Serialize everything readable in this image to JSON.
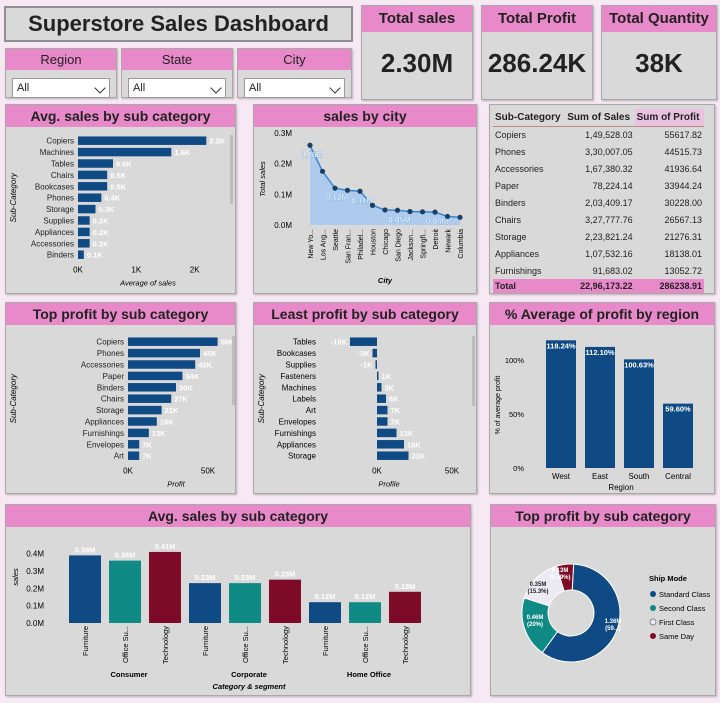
{
  "dashboard": {
    "title": "Superstore Sales Dashboard"
  },
  "kpis": [
    {
      "label": "Total sales",
      "value": "2.30M"
    },
    {
      "label": "Total Profit",
      "value": "286.24K"
    },
    {
      "label": "Total Quantity",
      "value": "38K"
    }
  ],
  "slicers": [
    {
      "label": "Region",
      "value": "All"
    },
    {
      "label": "State",
      "value": "All"
    },
    {
      "label": "City",
      "value": "All"
    }
  ],
  "colors": {
    "navy": "#0f4a84",
    "teal": "#0f8a84",
    "maroon": "#7d0a26",
    "pink": "#e889c9",
    "area": "#a9c9f0"
  },
  "panels": {
    "avg_sales_sub": "Avg. sales by sub category",
    "sales_city": "sales by city",
    "top_profit_sub": "Top profit by sub category",
    "least_profit_sub": "Least profit by sub category",
    "avg_profit_region": "% Average of profit by region",
    "avg_sales_segment": "Avg. sales by sub category",
    "top_profit_ship": "Top profit by sub category"
  },
  "table": {
    "headers": [
      "Sub-Category",
      "Sum of Sales",
      "Sum of Profit"
    ],
    "rows": [
      [
        "Copiers",
        "1,49,528.03",
        "55617.82"
      ],
      [
        "Phones",
        "3,30,007.05",
        "44515.73"
      ],
      [
        "Accessories",
        "1,67,380.32",
        "41936.64"
      ],
      [
        "Paper",
        "78,224.14",
        "33944.24"
      ],
      [
        "Binders",
        "2,03,409.17",
        "30228.00"
      ],
      [
        "Chairs",
        "3,27,777.76",
        "26567.13"
      ],
      [
        "Storage",
        "2,23,821.24",
        "21276.31"
      ],
      [
        "Appliances",
        "1,07,532.16",
        "18138.01"
      ],
      [
        "Furnishings",
        "91,683.02",
        "13052.72"
      ]
    ],
    "total": [
      "Total",
      "22,96,173.22",
      "286238.91"
    ]
  },
  "chart_data": [
    {
      "type": "bar",
      "orientation": "horizontal",
      "title": "Avg. sales by sub category",
      "xlabel": "Average of sales",
      "ylabel": "Sub-Category",
      "categories": [
        "Copiers",
        "Machines",
        "Tables",
        "Chairs",
        "Bookcases",
        "Phones",
        "Storage",
        "Supplies",
        "Appliances",
        "Accessories",
        "Binders"
      ],
      "values": [
        2200,
        1600,
        600,
        500,
        500,
        400,
        300,
        200,
        200,
        200,
        100
      ],
      "labels": [
        "2.2K",
        "1.6K",
        "0.6K",
        "0.5K",
        "0.5K",
        "0.4K",
        "0.3K",
        "0.2K",
        "0.2K",
        "0.2K",
        "0.1K"
      ],
      "xticks": [
        "0K",
        "1K",
        "2K"
      ],
      "xlim": [
        0,
        2400
      ]
    },
    {
      "type": "area",
      "title": "sales by city",
      "xlabel": "City",
      "ylabel": "Total sales",
      "categories": [
        "New Yo...",
        "Los Ang...",
        "Seattle",
        "San Fran...",
        "Philadel...",
        "Houston",
        "Chicago",
        "San Diego",
        "Jackson...",
        "Springfi...",
        "Detroit",
        "Newark",
        "Columbia"
      ],
      "values": [
        260000,
        175000,
        120000,
        113000,
        110000,
        64000,
        49000,
        48000,
        44000,
        43000,
        42000,
        28000,
        25000
      ],
      "labels": [
        "0.26M",
        "",
        "0.12M",
        "",
        "0.11M",
        "",
        "",
        "0.05M",
        "",
        "",
        "0.04M",
        "",
        ""
      ],
      "yticks": [
        "0.0M",
        "0.1M",
        "0.2M",
        "0.3M"
      ],
      "ylim": [
        0,
        300000
      ]
    },
    {
      "type": "bar",
      "orientation": "horizontal",
      "title": "Top profit by sub category",
      "xlabel": "Profit",
      "ylabel": "Sub-Category",
      "categories": [
        "Copiers",
        "Phones",
        "Accessories",
        "Paper",
        "Binders",
        "Chairs",
        "Storage",
        "Appliances",
        "Furnishings",
        "Envelopes",
        "Art"
      ],
      "values": [
        56000,
        45000,
        42000,
        34000,
        30000,
        27000,
        21000,
        18000,
        13000,
        7000,
        7000
      ],
      "labels": [
        "56K",
        "45K",
        "42K",
        "34K",
        "30K",
        "27K",
        "21K",
        "18K",
        "13K",
        "7K",
        "7K"
      ],
      "xticks": [
        "0K",
        "50K"
      ],
      "xlim": [
        0,
        60000
      ]
    },
    {
      "type": "bar",
      "orientation": "horizontal",
      "title": "Least profit by sub category",
      "xlabel": "Profile",
      "ylabel": "Sub-Category",
      "categories": [
        "Tables",
        "Bookcases",
        "Supplies",
        "Fasteners",
        "Machines",
        "Labels",
        "Art",
        "Envelopes",
        "Furnishings",
        "Appliances",
        "Storage"
      ],
      "values": [
        -18000,
        -3000,
        -1000,
        1000,
        3000,
        6000,
        7000,
        7000,
        13000,
        18000,
        21000
      ],
      "labels": [
        "-18K",
        "-3K",
        "-1K",
        "1K",
        "3K",
        "6K",
        "7K",
        "7K",
        "13K",
        "18K",
        "21K"
      ],
      "xticks": [
        "0K",
        "50K"
      ],
      "xlim": [
        -20000,
        60000
      ]
    },
    {
      "type": "bar",
      "title": "% Average of profit by region",
      "xlabel": "Region",
      "ylabel": "% of average profit",
      "categories": [
        "West",
        "East",
        "South",
        "Central"
      ],
      "values": [
        118.24,
        112.1,
        100.63,
        59.6
      ],
      "labels": [
        "118.24%",
        "112.10%",
        "100.63%",
        "59.60%"
      ],
      "yticks": [
        "0%",
        "50%",
        "100%"
      ],
      "ylim": [
        0,
        125
      ]
    },
    {
      "type": "bar",
      "title": "Avg. sales by sub category",
      "xlabel": "Category & segment",
      "ylabel": "sales",
      "groups": [
        "Consumer",
        "Corporate",
        "Home Office"
      ],
      "categories": [
        "Furniture",
        "Office Su...",
        "Technology",
        "Furniture",
        "Office Su...",
        "Technology",
        "Furniture",
        "Office Su...",
        "Technology"
      ],
      "values": [
        0.39,
        0.36,
        0.41,
        0.23,
        0.23,
        0.25,
        0.12,
        0.12,
        0.18
      ],
      "labels": [
        "0.39M",
        "0.36M",
        "0.41M",
        "0.23M",
        "0.23M",
        "0.25M",
        "0.12M",
        "0.12M",
        "0.18M"
      ],
      "yticks": [
        "0.0M",
        "0.1M",
        "0.2M",
        "0.3M",
        "0.4M"
      ],
      "ylim": [
        0,
        0.45
      ]
    },
    {
      "type": "pie",
      "title": "Top profit by sub category",
      "legend_title": "Ship Mode",
      "categories": [
        "Standard Class",
        "Second Class",
        "First Class",
        "Same Day"
      ],
      "values": [
        1.36,
        0.46,
        0.35,
        0.13
      ],
      "labels": [
        "1.36M (59...)",
        "0.46M (20%)",
        "0.35M (15.3%)",
        "0.13M (5.59%)"
      ],
      "colors": [
        "#0f4a84",
        "#0f8a84",
        "#ecebf3",
        "#7d0a26"
      ]
    }
  ]
}
